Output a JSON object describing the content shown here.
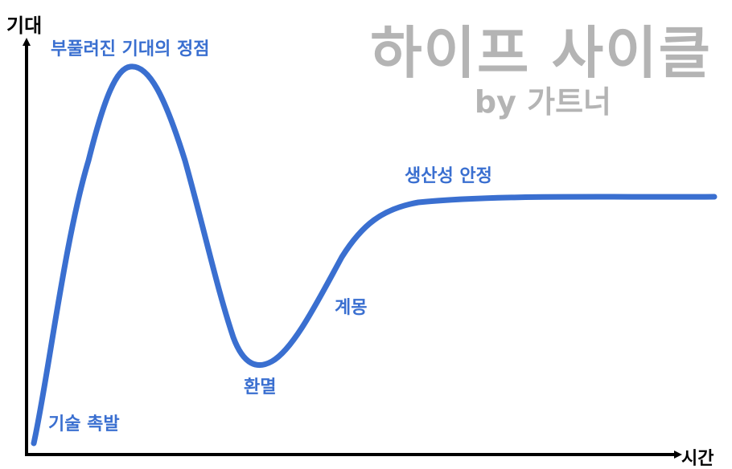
{
  "title": "하이프 사이클",
  "subtitle": "by 가트너",
  "axis": {
    "y_label": "기대",
    "x_label": "시간"
  },
  "phases": [
    {
      "key": "trigger",
      "label": "기술 촉발"
    },
    {
      "key": "peak",
      "label": "부풀려진 기대의 정점"
    },
    {
      "key": "trough",
      "label": "환멸"
    },
    {
      "key": "slope",
      "label": "계몽"
    },
    {
      "key": "plateau",
      "label": "생산성 안정"
    }
  ],
  "colors": {
    "curve": "#3a6fd0",
    "label": "#3a6fd0",
    "axis": "#000000",
    "title": "#b4b4b4"
  }
}
